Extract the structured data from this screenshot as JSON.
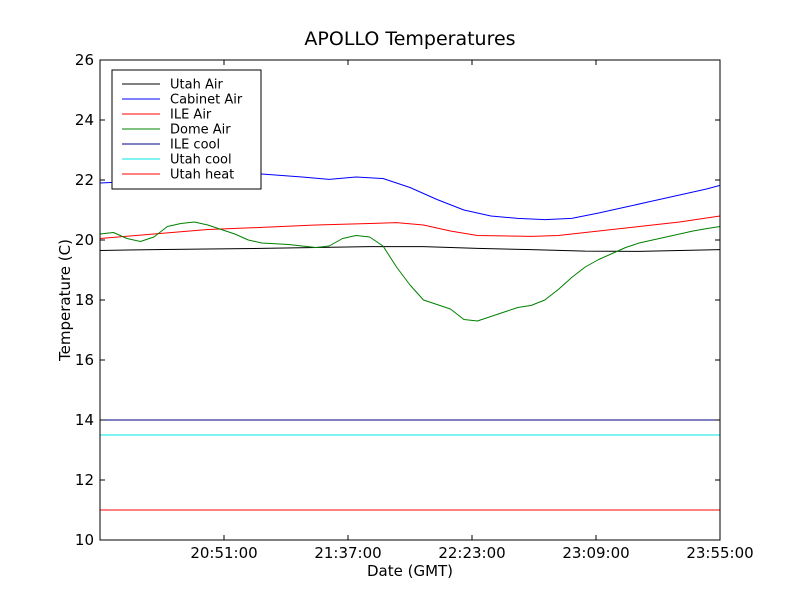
{
  "chart_data": {
    "type": "line",
    "title": "APOLLO Temperatures",
    "xlabel": "Date (GMT)",
    "ylabel": "Temperature (C)",
    "x_unit": "minutes since 20:05:00",
    "xlim": [
      0,
      230
    ],
    "ylim": [
      10,
      26
    ],
    "x_ticks": [
      {
        "value": 46,
        "label": "20:51:00"
      },
      {
        "value": 92,
        "label": "21:37:00"
      },
      {
        "value": 138,
        "label": "22:23:00"
      },
      {
        "value": 184,
        "label": "23:09:00"
      },
      {
        "value": 230,
        "label": "23:55:00"
      }
    ],
    "y_ticks": [
      {
        "value": 10,
        "label": "10"
      },
      {
        "value": 12,
        "label": "12"
      },
      {
        "value": 14,
        "label": "14"
      },
      {
        "value": 16,
        "label": "16"
      },
      {
        "value": 18,
        "label": "18"
      },
      {
        "value": 20,
        "label": "20"
      },
      {
        "value": 22,
        "label": "22"
      },
      {
        "value": 24,
        "label": "24"
      },
      {
        "value": 26,
        "label": "26"
      }
    ],
    "grid": false,
    "legend_position": "top-left",
    "series": [
      {
        "name": "Utah Air",
        "color": "#000000",
        "x": [
          0,
          20,
          40,
          60,
          80,
          100,
          120,
          140,
          160,
          180,
          200,
          230
        ],
        "y": [
          19.65,
          19.68,
          19.7,
          19.72,
          19.75,
          19.78,
          19.78,
          19.72,
          19.68,
          19.63,
          19.62,
          19.68
        ]
      },
      {
        "name": "Cabinet Air",
        "color": "#0000ff",
        "x": [
          0,
          5,
          20,
          35,
          45,
          60,
          75,
          85,
          95,
          105,
          115,
          125,
          135,
          145,
          155,
          165,
          175,
          185,
          195,
          205,
          215,
          225,
          230
        ],
        "y": [
          21.9,
          21.92,
          22.0,
          22.25,
          22.3,
          22.2,
          22.1,
          22.02,
          22.1,
          22.05,
          21.75,
          21.35,
          21.0,
          20.8,
          20.72,
          20.68,
          20.72,
          20.9,
          21.1,
          21.3,
          21.5,
          21.7,
          21.82
        ]
      },
      {
        "name": "ILE Air",
        "color": "#ff0000",
        "x": [
          0,
          20,
          40,
          60,
          80,
          100,
          110,
          120,
          130,
          140,
          160,
          170,
          180,
          200,
          215,
          230
        ],
        "y": [
          20.05,
          20.2,
          20.35,
          20.42,
          20.5,
          20.55,
          20.58,
          20.5,
          20.3,
          20.15,
          20.12,
          20.15,
          20.25,
          20.45,
          20.6,
          20.8
        ]
      },
      {
        "name": "Dome Air",
        "color": "#008000",
        "x": [
          0,
          5,
          10,
          15,
          20,
          25,
          30,
          35,
          40,
          45,
          50,
          55,
          60,
          70,
          80,
          85,
          90,
          95,
          100,
          105,
          110,
          115,
          120,
          125,
          130,
          135,
          140,
          145,
          150,
          155,
          160,
          165,
          170,
          175,
          180,
          185,
          190,
          195,
          200,
          205,
          210,
          215,
          220,
          225,
          230
        ],
        "y": [
          20.2,
          20.25,
          20.05,
          19.95,
          20.1,
          20.45,
          20.55,
          20.6,
          20.5,
          20.35,
          20.2,
          20.0,
          19.9,
          19.85,
          19.75,
          19.8,
          20.05,
          20.15,
          20.1,
          19.8,
          19.1,
          18.5,
          18.0,
          17.85,
          17.7,
          17.35,
          17.3,
          17.45,
          17.6,
          17.75,
          17.82,
          18.0,
          18.35,
          18.75,
          19.1,
          19.35,
          19.55,
          19.75,
          19.9,
          20.0,
          20.1,
          20.2,
          20.3,
          20.38,
          20.45
        ]
      },
      {
        "name": "ILE cool",
        "color": "#000080",
        "x": [
          0,
          230
        ],
        "y": [
          14.0,
          14.0
        ]
      },
      {
        "name": "Utah cool",
        "color": "#00e5e5",
        "x": [
          0,
          230
        ],
        "y": [
          13.5,
          13.5
        ]
      },
      {
        "name": "Utah heat",
        "color": "#ff0000",
        "x": [
          0,
          230
        ],
        "y": [
          11.0,
          11.0
        ]
      }
    ]
  }
}
